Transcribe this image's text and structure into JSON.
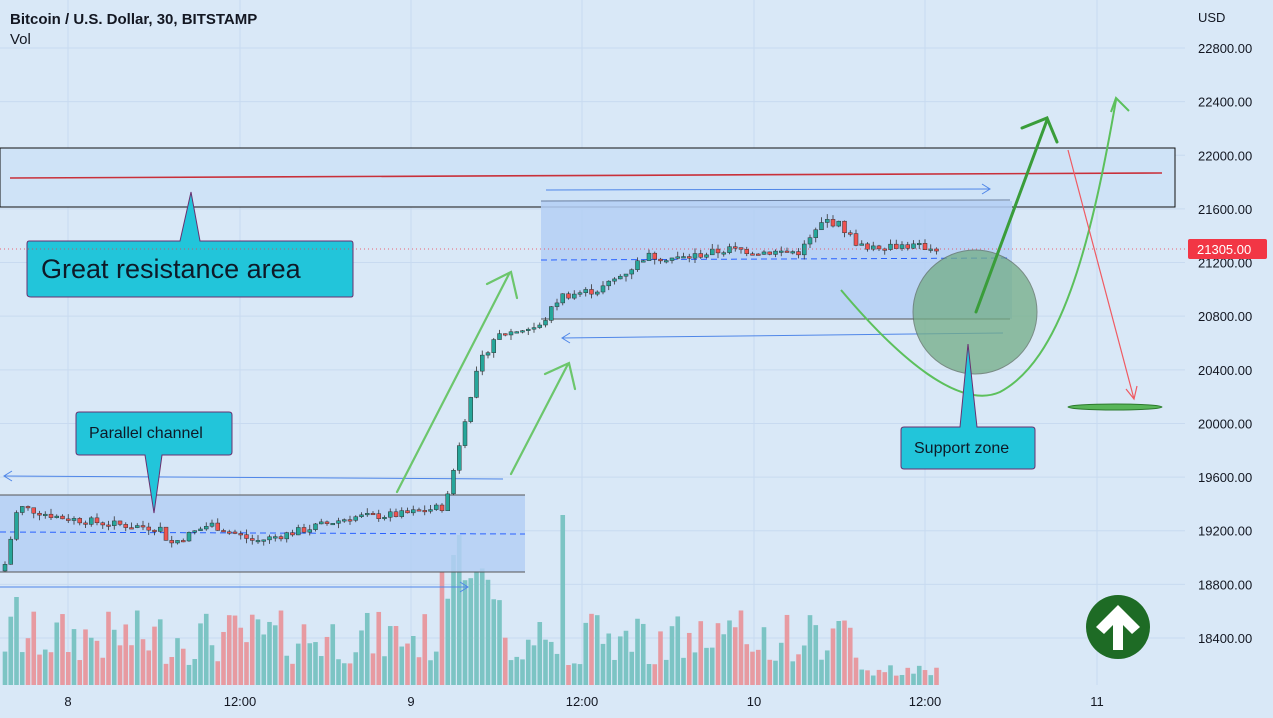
{
  "header": {
    "title": "Bitcoin / U.S. Dollar, 30, BITSTAMP",
    "vol_label": "Vol"
  },
  "axis": {
    "currency": "USD",
    "price_ticks": [
      "22800.00",
      "22400.00",
      "22000.00",
      "21600.00",
      "21200.00",
      "20800.00",
      "20400.00",
      "20000.00",
      "19600.00",
      "19200.00",
      "18800.00",
      "18400.00"
    ],
    "time_ticks": [
      "8",
      "12:00",
      "9",
      "12:00",
      "10",
      "12:00",
      "11"
    ],
    "last_price": "21305.00"
  },
  "annotations": {
    "resistance": "Great resistance area",
    "channel": "Parallel channel",
    "support": "Support zone"
  },
  "colors": {
    "up": "#26a69a",
    "down": "#ef5350",
    "callout": "#22c5da",
    "arrow": "#5fc35f",
    "zone": "#b4cff5",
    "last_price_bg": "#f23645"
  },
  "chart_data": {
    "type": "candlestick",
    "title": "Bitcoin / U.S. Dollar, 30, BITSTAMP",
    "y_range": [
      18200,
      23000
    ],
    "y_unit": "USD",
    "last_price": 21305,
    "resistance_zone": [
      21620,
      22050
    ],
    "resistance_line": 21850,
    "channel_range": [
      18920,
      19480
    ],
    "upper_range": [
      20800,
      21660
    ],
    "target_levels": [
      22300,
      20130
    ]
  }
}
